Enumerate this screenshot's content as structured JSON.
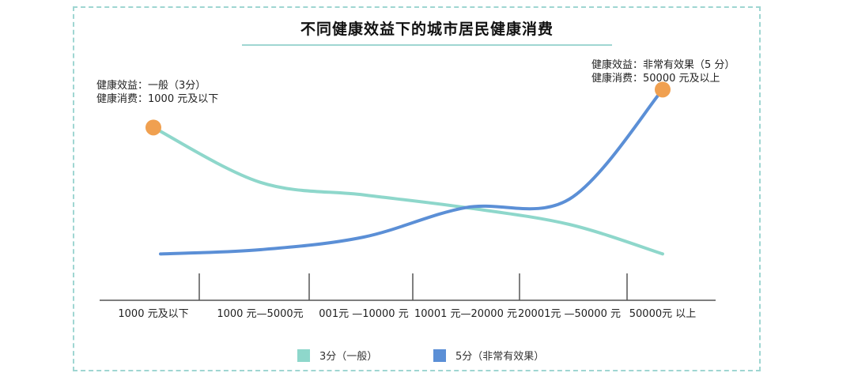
{
  "title": "不同健康效益下的城市居民健康消费",
  "annotations": {
    "left": [
      "健康效益：一般（3分）",
      "健康消费：1000 元及以下"
    ],
    "right": [
      "健康效益：非常有效果（5 分）",
      "健康消费：50000 元及以上"
    ]
  },
  "colors": {
    "series_a": "#8ed7cb",
    "series_b": "#5b8fd6",
    "highlight": "#f0a050",
    "axis": "#555555",
    "frame": "#9fd6d2"
  },
  "chart_data": {
    "type": "line",
    "title": "不同健康效益下的城市居民健康消费",
    "categories": [
      "1000 元及以下",
      "1000 元—5000元",
      "001元 —10000 元",
      "10001 元—20000 元",
      "20001元 —50000 元",
      "50000元 以上"
    ],
    "series": [
      {
        "name": "3分（一般）",
        "values": [
          41,
          28,
          25,
          22,
          18,
          11
        ]
      },
      {
        "name": "5分（非常有效果）",
        "values": [
          11,
          12,
          15,
          22,
          24,
          50
        ]
      }
    ],
    "y_range": [
      0,
      60
    ],
    "highlighted_points": [
      {
        "series": "3分（一般）",
        "category": "1000 元及以下"
      },
      {
        "series": "5分（非常有效果）",
        "category": "50000元 以上"
      }
    ],
    "grid": false,
    "legend_position": "bottom"
  }
}
